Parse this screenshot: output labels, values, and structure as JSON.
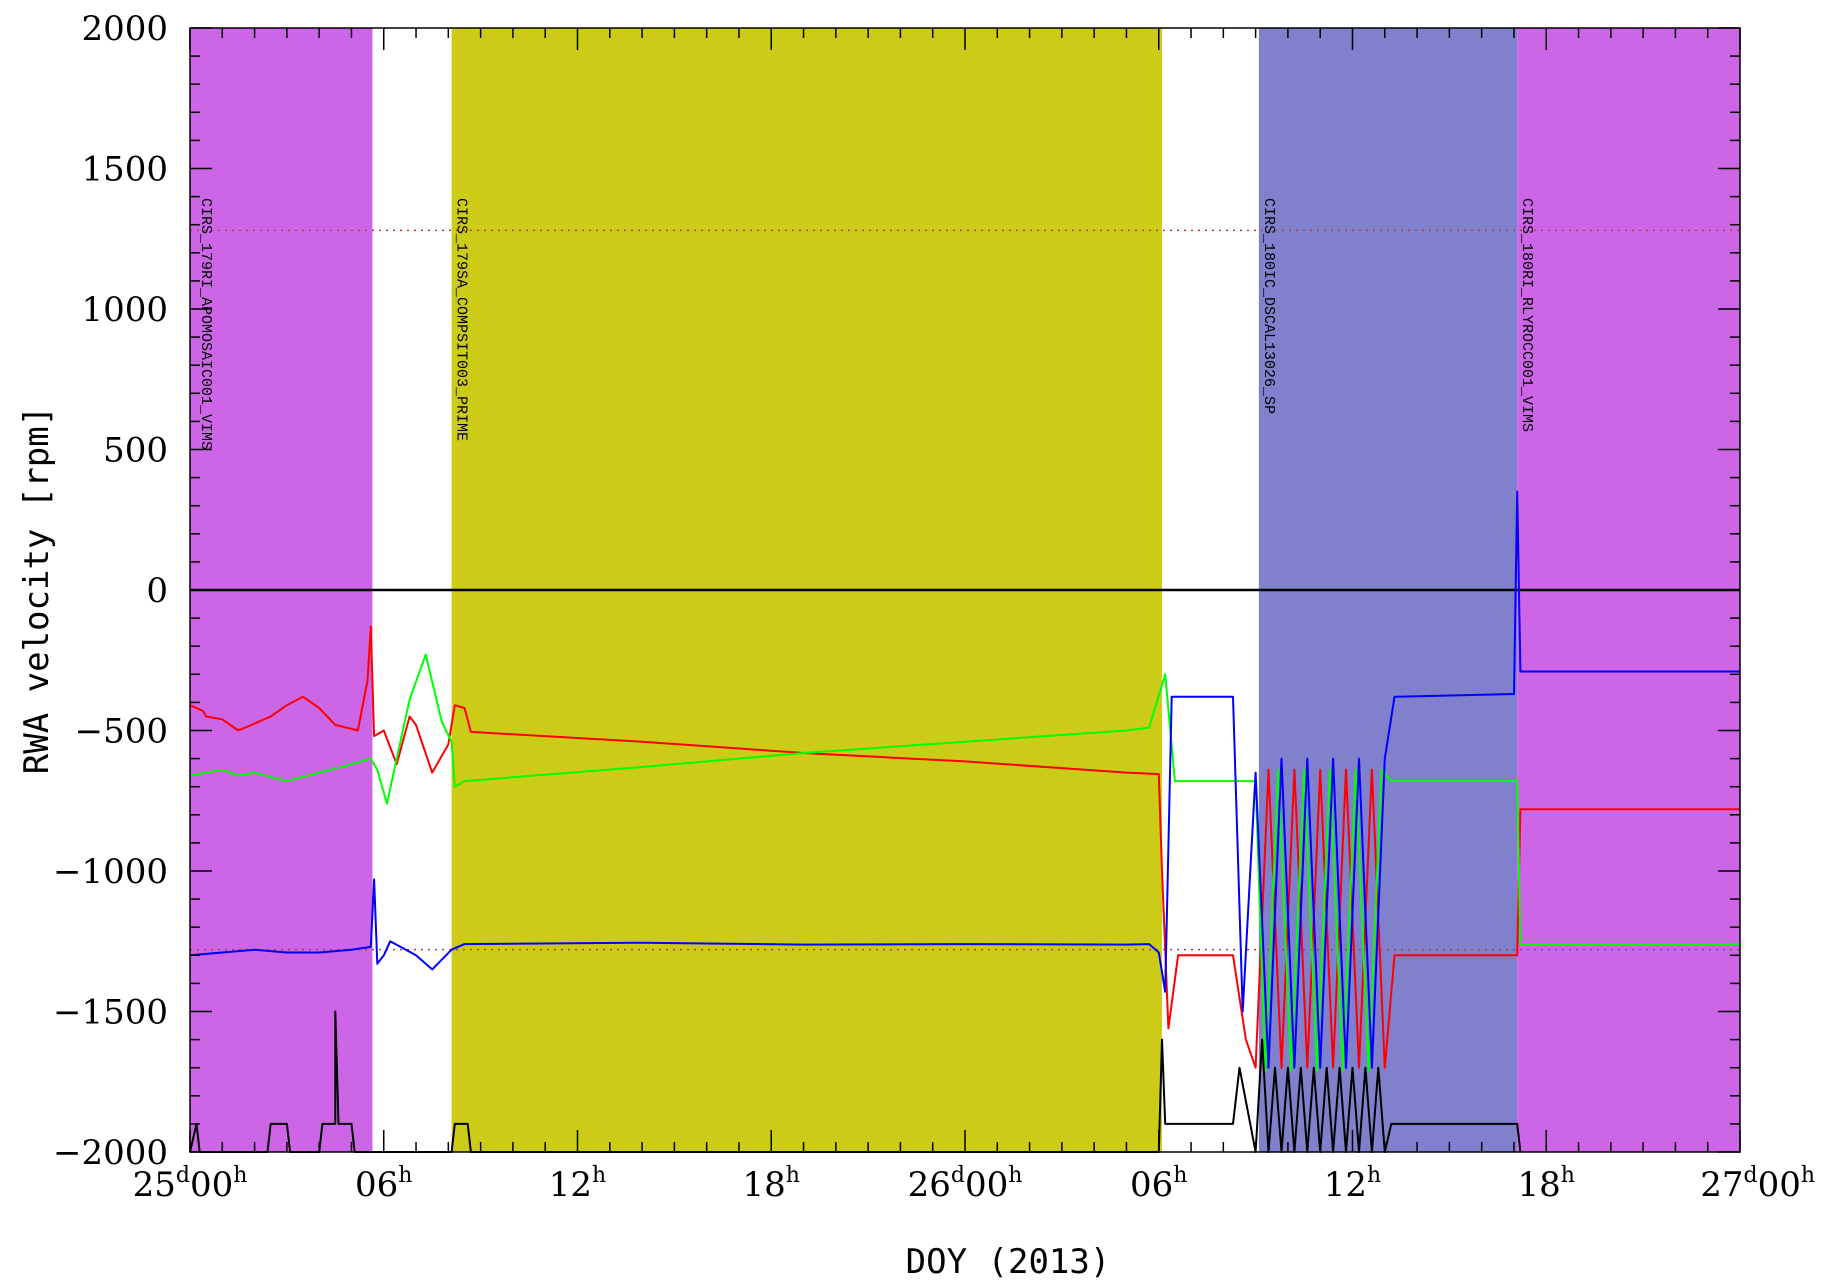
{
  "chart_data": {
    "type": "line",
    "title": "",
    "xlabel": "DOY (2013)",
    "ylabel": "RWA velocity [rpm]",
    "xlim_hours": [
      0,
      48
    ],
    "ylim": [
      -2000,
      2000
    ],
    "y_ticks": [
      {
        "v": -2000,
        "label": "−2000"
      },
      {
        "v": -1500,
        "label": "−1500"
      },
      {
        "v": -1000,
        "label": "−1000"
      },
      {
        "v": -500,
        "label": "−500"
      },
      {
        "v": 0,
        "label": "0"
      },
      {
        "v": 500,
        "label": "500"
      },
      {
        "v": 1000,
        "label": "1000"
      },
      {
        "v": 1500,
        "label": "1500"
      },
      {
        "v": 2000,
        "label": "2000"
      }
    ],
    "x_ticks": [
      {
        "h": 0,
        "day": "25",
        "hour": "00"
      },
      {
        "h": 6,
        "day": "",
        "hour": "06"
      },
      {
        "h": 12,
        "day": "",
        "hour": "12"
      },
      {
        "h": 18,
        "day": "",
        "hour": "18"
      },
      {
        "h": 24,
        "day": "26",
        "hour": "00"
      },
      {
        "h": 30,
        "day": "",
        "hour": "06"
      },
      {
        "h": 36,
        "day": "",
        "hour": "12"
      },
      {
        "h": 42,
        "day": "",
        "hour": "18"
      },
      {
        "h": 48,
        "day": "27",
        "hour": "00"
      }
    ],
    "unit_day": "d",
    "unit_hour": "h",
    "reference_lines": [
      1280,
      -1280
    ],
    "observation_periods": [
      {
        "start": 0.0,
        "end": 5.65,
        "color": "#cc66e6",
        "label": "CIRS_179RI_APOMOSAIC001_VIMS"
      },
      {
        "start": 8.1,
        "end": 30.1,
        "color": "#cccc18",
        "label": "CIRS_179SA_COMPSIT003_PRIME"
      },
      {
        "start": 33.1,
        "end": 41.1,
        "color": "#8080cc",
        "label": "CIRS_180IC_DSCAL13026_SP"
      },
      {
        "start": 41.1,
        "end": 48.0,
        "color": "#cc66e6",
        "label": "CIRS_180RI_RLYROCC001_VIMS"
      }
    ],
    "series": [
      {
        "color": "#ff0000",
        "points": [
          [
            0,
            -410
          ],
          [
            0.4,
            -430
          ],
          [
            0.5,
            -450
          ],
          [
            1.0,
            -460
          ],
          [
            1.5,
            -500
          ],
          [
            2.5,
            -450
          ],
          [
            3.0,
            -410
          ],
          [
            3.5,
            -380
          ],
          [
            4.0,
            -420
          ],
          [
            4.5,
            -480
          ],
          [
            5.2,
            -500
          ],
          [
            5.5,
            -320
          ],
          [
            5.6,
            -130
          ],
          [
            5.7,
            -520
          ],
          [
            6.0,
            -500
          ],
          [
            6.4,
            -620
          ],
          [
            6.8,
            -450
          ],
          [
            7.0,
            -480
          ],
          [
            7.5,
            -650
          ],
          [
            8.0,
            -550
          ],
          [
            8.2,
            -410
          ],
          [
            8.5,
            -420
          ],
          [
            8.7,
            -505
          ],
          [
            14,
            -540
          ],
          [
            19,
            -580
          ],
          [
            24,
            -610
          ],
          [
            29,
            -650
          ],
          [
            30,
            -655
          ],
          [
            30.1,
            -1000
          ],
          [
            30.3,
            -1560
          ],
          [
            30.6,
            -1300
          ],
          [
            32.3,
            -1300
          ],
          [
            32.7,
            -1600
          ],
          [
            33.0,
            -1700
          ],
          [
            33.4,
            -640
          ],
          [
            33.8,
            -1700
          ],
          [
            34.2,
            -640
          ],
          [
            34.6,
            -1700
          ],
          [
            35.0,
            -640
          ],
          [
            35.4,
            -1700
          ],
          [
            35.8,
            -640
          ],
          [
            36.2,
            -1700
          ],
          [
            36.6,
            -640
          ],
          [
            37.0,
            -1700
          ],
          [
            37.3,
            -1300
          ],
          [
            41.1,
            -1300
          ],
          [
            41.2,
            -780
          ],
          [
            48,
            -780
          ]
        ]
      },
      {
        "color": "#00ff00",
        "points": [
          [
            0,
            -660
          ],
          [
            0.5,
            -650
          ],
          [
            1.0,
            -640
          ],
          [
            1.5,
            -660
          ],
          [
            2.0,
            -650
          ],
          [
            3.0,
            -680
          ],
          [
            4.0,
            -650
          ],
          [
            5.0,
            -620
          ],
          [
            5.6,
            -600
          ],
          [
            5.8,
            -640
          ],
          [
            6.1,
            -760
          ],
          [
            6.4,
            -600
          ],
          [
            6.8,
            -390
          ],
          [
            7.3,
            -230
          ],
          [
            7.8,
            -470
          ],
          [
            8.1,
            -540
          ],
          [
            8.2,
            -700
          ],
          [
            8.5,
            -680
          ],
          [
            14,
            -630
          ],
          [
            19,
            -580
          ],
          [
            24,
            -540
          ],
          [
            29,
            -500
          ],
          [
            29.7,
            -490
          ],
          [
            30.2,
            -300
          ],
          [
            30.5,
            -680
          ],
          [
            32.3,
            -680
          ],
          [
            33.0,
            -680
          ],
          [
            33.3,
            -1710
          ],
          [
            33.7,
            -640
          ],
          [
            34.1,
            -1710
          ],
          [
            34.5,
            -640
          ],
          [
            34.9,
            -1710
          ],
          [
            35.3,
            -640
          ],
          [
            35.7,
            -1710
          ],
          [
            36.1,
            -640
          ],
          [
            36.5,
            -1710
          ],
          [
            36.9,
            -640
          ],
          [
            37.2,
            -680
          ],
          [
            41.1,
            -680
          ],
          [
            41.2,
            -1260
          ],
          [
            48,
            -1260
          ]
        ]
      },
      {
        "color": "#0000ff",
        "points": [
          [
            0,
            -1300
          ],
          [
            1.0,
            -1290
          ],
          [
            2.0,
            -1280
          ],
          [
            3.0,
            -1290
          ],
          [
            4.0,
            -1290
          ],
          [
            5.0,
            -1280
          ],
          [
            5.6,
            -1270
          ],
          [
            5.7,
            -1030
          ],
          [
            5.8,
            -1330
          ],
          [
            6.0,
            -1300
          ],
          [
            6.2,
            -1250
          ],
          [
            7.0,
            -1300
          ],
          [
            7.5,
            -1350
          ],
          [
            8.1,
            -1280
          ],
          [
            8.5,
            -1260
          ],
          [
            14,
            -1255
          ],
          [
            19,
            -1262
          ],
          [
            24,
            -1260
          ],
          [
            29,
            -1262
          ],
          [
            29.7,
            -1260
          ],
          [
            30.0,
            -1290
          ],
          [
            30.2,
            -1430
          ],
          [
            30.4,
            -380
          ],
          [
            32.3,
            -380
          ],
          [
            32.6,
            -1500
          ],
          [
            33.0,
            -650
          ],
          [
            33.4,
            -1700
          ],
          [
            33.8,
            -600
          ],
          [
            34.2,
            -1700
          ],
          [
            34.6,
            -600
          ],
          [
            35.0,
            -1700
          ],
          [
            35.4,
            -600
          ],
          [
            35.8,
            -1700
          ],
          [
            36.2,
            -600
          ],
          [
            36.6,
            -1700
          ],
          [
            37.0,
            -600
          ],
          [
            37.3,
            -380
          ],
          [
            41.0,
            -370
          ],
          [
            41.1,
            350
          ],
          [
            41.2,
            -290
          ],
          [
            48,
            -290
          ]
        ]
      },
      {
        "color": "#000000",
        "points": [
          [
            0,
            -2000
          ],
          [
            0.2,
            -1900
          ],
          [
            0.3,
            -2000
          ],
          [
            2.4,
            -2000
          ],
          [
            2.5,
            -1900
          ],
          [
            3.0,
            -1900
          ],
          [
            3.1,
            -2000
          ],
          [
            4.0,
            -2000
          ],
          [
            4.1,
            -1900
          ],
          [
            4.5,
            -1900
          ],
          [
            4.5,
            -1500
          ],
          [
            4.6,
            -1900
          ],
          [
            5.0,
            -1900
          ],
          [
            5.1,
            -2000
          ],
          [
            8.1,
            -2000
          ],
          [
            8.2,
            -1900
          ],
          [
            8.6,
            -1900
          ],
          [
            8.7,
            -2000
          ],
          [
            30.0,
            -2000
          ],
          [
            30.1,
            -1600
          ],
          [
            30.2,
            -1900
          ],
          [
            32.3,
            -1900
          ],
          [
            32.5,
            -1700
          ],
          [
            33.0,
            -2000
          ],
          [
            33.2,
            -1600
          ],
          [
            33.4,
            -2000
          ],
          [
            33.6,
            -1700
          ],
          [
            33.8,
            -2000
          ],
          [
            34.0,
            -1700
          ],
          [
            34.2,
            -2000
          ],
          [
            34.4,
            -1700
          ],
          [
            34.6,
            -2000
          ],
          [
            34.8,
            -1700
          ],
          [
            35.0,
            -2000
          ],
          [
            35.2,
            -1700
          ],
          [
            35.4,
            -2000
          ],
          [
            35.6,
            -1700
          ],
          [
            35.8,
            -2000
          ],
          [
            36.0,
            -1700
          ],
          [
            36.2,
            -2000
          ],
          [
            36.4,
            -1700
          ],
          [
            36.6,
            -2000
          ],
          [
            36.8,
            -1700
          ],
          [
            37.0,
            -2000
          ],
          [
            37.2,
            -1900
          ],
          [
            41.1,
            -1900
          ],
          [
            41.2,
            -2000
          ]
        ]
      }
    ]
  }
}
